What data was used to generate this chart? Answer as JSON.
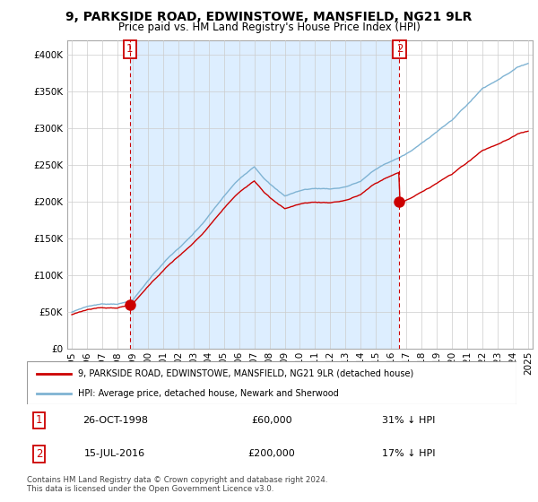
{
  "title": "9, PARKSIDE ROAD, EDWINSTOWE, MANSFIELD, NG21 9LR",
  "subtitle": "Price paid vs. HM Land Registry's House Price Index (HPI)",
  "sale1_year": 1998.82,
  "sale1_price": 60000,
  "sale1_label": "1",
  "sale1_date": "26-OCT-1998",
  "sale1_hpi": "31% ↓ HPI",
  "sale2_year": 2016.54,
  "sale2_price": 200000,
  "sale2_label": "2",
  "sale2_date": "15-JUL-2016",
  "sale2_hpi": "17% ↓ HPI",
  "legend_line1": "9, PARKSIDE ROAD, EDWINSTOWE, MANSFIELD, NG21 9LR (detached house)",
  "legend_line2": "HPI: Average price, detached house, Newark and Sherwood",
  "copyright": "Contains HM Land Registry data © Crown copyright and database right 2024.\nThis data is licensed under the Open Government Licence v3.0.",
  "hpi_color": "#7fb3d3",
  "sale_color": "#cc0000",
  "vline_color": "#cc0000",
  "grid_color": "#cccccc",
  "shade_color": "#ddeeff",
  "background_color": "#ffffff",
  "ylim": [
    0,
    420000
  ],
  "yticks": [
    0,
    50000,
    100000,
    150000,
    200000,
    250000,
    300000,
    350000,
    400000
  ],
  "xmin": 1994.7,
  "xmax": 2025.3
}
